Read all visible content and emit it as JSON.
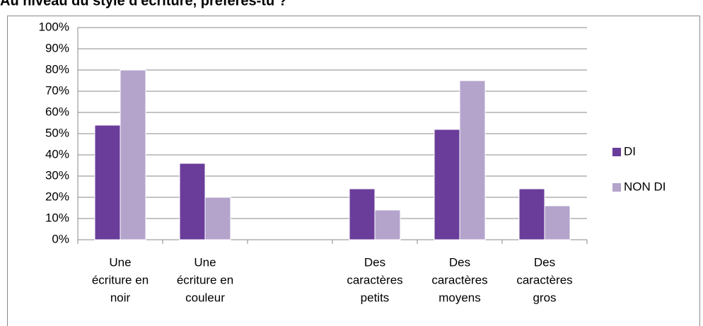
{
  "chart_data": {
    "type": "bar",
    "title": "Au niveau du style d'écriture, préfères-tu ?",
    "categories": [
      [
        "Une",
        "écriture en",
        "noir"
      ],
      [
        "Une",
        "écriture en",
        "couleur"
      ],
      null,
      [
        "Des",
        "caractères",
        "petits"
      ],
      [
        "Des",
        "caractères",
        "moyens"
      ],
      [
        "Des",
        "caractères",
        "gros"
      ]
    ],
    "series": [
      {
        "name": "DI",
        "color": "#6a3d9a",
        "values": [
          54,
          36,
          null,
          24,
          52,
          24
        ]
      },
      {
        "name": "NON DI",
        "color": "#b4a4cc",
        "values": [
          80,
          20,
          null,
          14,
          75,
          16
        ]
      }
    ],
    "ylim": [
      0,
      100
    ],
    "yticks": [
      {
        "value": 0,
        "label": "0%"
      },
      {
        "value": 10,
        "label": "10%"
      },
      {
        "value": 20,
        "label": "20%"
      },
      {
        "value": 30,
        "label": "30%"
      },
      {
        "value": 40,
        "label": "40%"
      },
      {
        "value": 50,
        "label": "50%"
      },
      {
        "value": 60,
        "label": "60%"
      },
      {
        "value": 70,
        "label": "70%"
      },
      {
        "value": 80,
        "label": "80%"
      },
      {
        "value": 90,
        "label": "90%"
      },
      {
        "value": 100,
        "label": "100%"
      }
    ],
    "grid": true,
    "legend": "right"
  }
}
